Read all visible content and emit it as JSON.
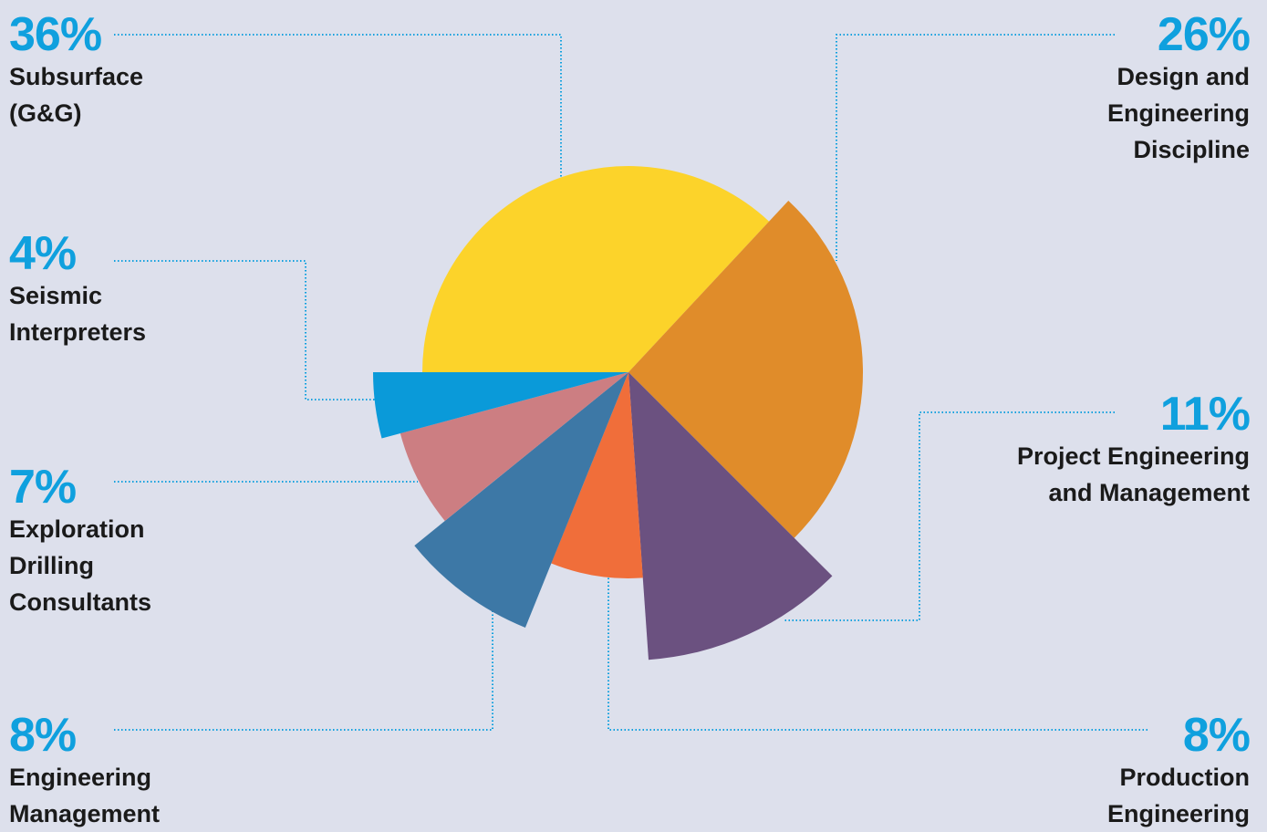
{
  "chart_data": {
    "type": "pie",
    "variant": "polar-area (slice radius varies with value)",
    "accent_color": "#0fa0de",
    "leader_line_style": "dotted",
    "slices": [
      {
        "label": "Subsurface\n(G&G)",
        "percent": "36%",
        "value": 36,
        "color": "#fcd32a"
      },
      {
        "label": "Design and\nEngineering\nDiscipline",
        "percent": "26%",
        "value": 26,
        "color": "#e08c2a"
      },
      {
        "label": "Project Engineering\nand Management",
        "percent": "11%",
        "value": 11,
        "color": "#6b5180"
      },
      {
        "label": "Production\nEngineering",
        "percent": "8%",
        "value": 8,
        "color": "#f06e3a"
      },
      {
        "label": "Engineering\nManagement",
        "percent": "8%",
        "value": 8,
        "color": "#3d78a6"
      },
      {
        "label": "Exploration\nDrilling\nConsultants",
        "percent": "7%",
        "value": 7,
        "color": "#cc7e82"
      },
      {
        "label": "Seismic\nInterpreters",
        "percent": "4%",
        "value": 4,
        "color": "#0a9ad9"
      }
    ]
  }
}
